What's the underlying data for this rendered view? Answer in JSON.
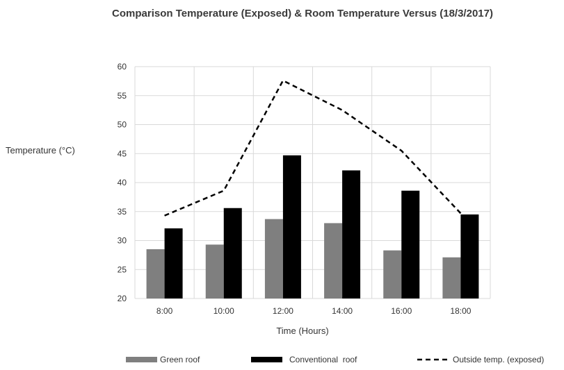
{
  "chart_data": {
    "type": "bar",
    "title": "Comparison Temperature (Exposed) & Room Temperature Versus (18/3/2017)",
    "xlabel": "Time (Hours)",
    "ylabel": "Temperature (°C)",
    "categories": [
      "8:00",
      "10:00",
      "12:00",
      "14:00",
      "16:00",
      "18:00"
    ],
    "ylim": [
      20,
      60
    ],
    "yticks": [
      20,
      25,
      30,
      35,
      40,
      45,
      50,
      55,
      60
    ],
    "grid": true,
    "legend_position": "bottom",
    "series": [
      {
        "name": "Green roof",
        "type": "bar",
        "color": "#7f7f7f",
        "values": [
          28.5,
          29.3,
          33.7,
          33.0,
          28.3,
          27.1
        ]
      },
      {
        "name": "Conventional  roof",
        "type": "bar",
        "color": "#000000",
        "values": [
          32.1,
          35.6,
          44.7,
          42.1,
          38.6,
          34.5
        ]
      },
      {
        "name": "Outside temp. (exposed)",
        "type": "line",
        "style": "dashed",
        "color": "#000000",
        "values": [
          34.3,
          38.6,
          57.6,
          52.5,
          45.5,
          34.7
        ]
      }
    ]
  }
}
